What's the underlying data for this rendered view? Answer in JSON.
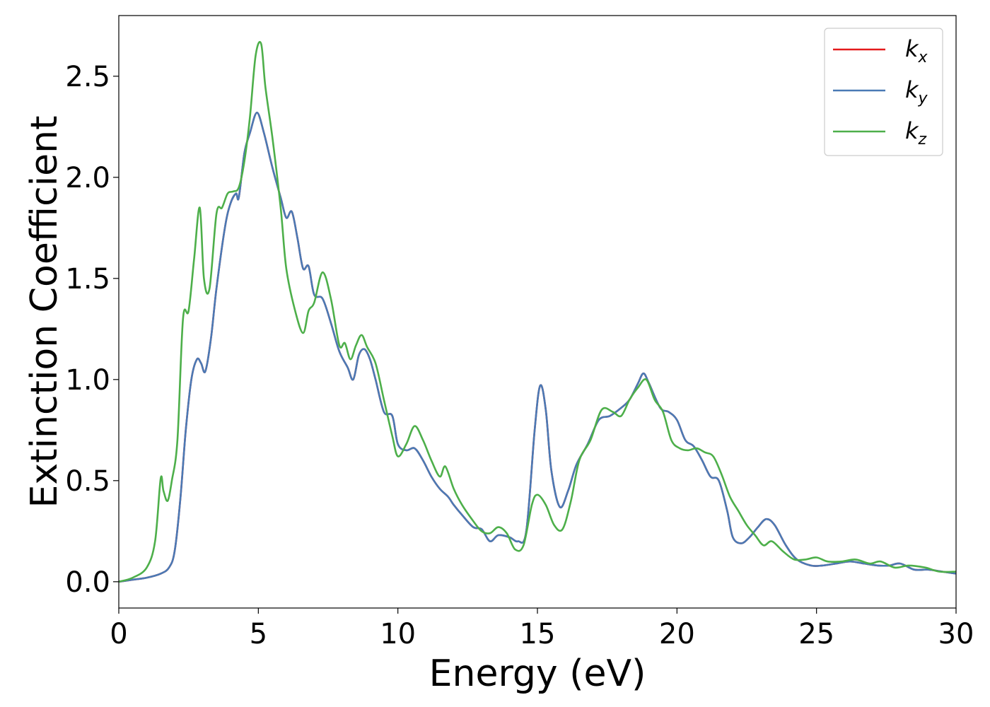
{
  "chart_data": {
    "type": "line",
    "title": "",
    "xlabel": "Energy (eV)",
    "ylabel": "Extinction Coefficient",
    "xlim": [
      0,
      30
    ],
    "ylim": [
      -0.13,
      2.8
    ],
    "xticks": [
      0,
      5,
      10,
      15,
      20,
      25,
      30
    ],
    "xtick_labels": [
      "0",
      "5",
      "10",
      "15",
      "20",
      "25",
      "30"
    ],
    "yticks": [
      0.0,
      0.5,
      1.0,
      1.5,
      2.0,
      2.5
    ],
    "ytick_labels": [
      "0.0",
      "0.5",
      "1.0",
      "1.5",
      "2.0",
      "2.5"
    ],
    "grid": false,
    "legend_position": "top-right",
    "series": [
      {
        "name": "kx",
        "legend_base": "k",
        "legend_sub": "x",
        "color": "#e41a1c",
        "x": [
          0,
          0.5,
          1.0,
          1.5,
          1.8,
          2.0,
          2.2,
          2.4,
          2.6,
          2.8,
          2.95,
          3.1,
          3.3,
          3.5,
          3.8,
          4.0,
          4.2,
          4.3,
          4.5,
          4.7,
          4.95,
          5.2,
          5.5,
          5.8,
          6.0,
          6.2,
          6.4,
          6.6,
          6.8,
          7.0,
          7.3,
          7.6,
          7.9,
          8.2,
          8.4,
          8.6,
          8.8,
          9.0,
          9.2,
          9.5,
          9.8,
          10.0,
          10.3,
          10.6,
          10.9,
          11.2,
          11.5,
          11.8,
          12.0,
          12.3,
          12.7,
          13.0,
          13.3,
          13.6,
          14.0,
          14.3,
          14.6,
          14.9,
          15.1,
          15.3,
          15.5,
          15.8,
          16.1,
          16.4,
          16.8,
          17.2,
          17.6,
          18.0,
          18.3,
          18.6,
          18.8,
          19.0,
          19.4,
          19.7,
          20.0,
          20.3,
          20.6,
          20.9,
          21.2,
          21.5,
          21.8,
          22.0,
          22.3,
          22.6,
          22.9,
          23.2,
          23.5,
          23.9,
          24.3,
          24.8,
          25.2,
          25.7,
          26.2,
          26.7,
          27.2,
          27.6,
          28.0,
          28.5,
          29.0,
          29.5,
          30.0
        ],
        "y": [
          0.0,
          0.01,
          0.02,
          0.04,
          0.07,
          0.15,
          0.4,
          0.75,
          1.0,
          1.1,
          1.08,
          1.04,
          1.2,
          1.45,
          1.75,
          1.87,
          1.92,
          1.9,
          2.12,
          2.22,
          2.32,
          2.22,
          2.05,
          1.9,
          1.8,
          1.83,
          1.7,
          1.55,
          1.56,
          1.42,
          1.4,
          1.28,
          1.14,
          1.06,
          1.0,
          1.12,
          1.15,
          1.1,
          1.0,
          0.84,
          0.82,
          0.68,
          0.65,
          0.66,
          0.6,
          0.52,
          0.46,
          0.42,
          0.38,
          0.33,
          0.27,
          0.26,
          0.2,
          0.23,
          0.22,
          0.2,
          0.25,
          0.75,
          0.97,
          0.85,
          0.55,
          0.37,
          0.45,
          0.58,
          0.68,
          0.8,
          0.82,
          0.86,
          0.9,
          0.98,
          1.03,
          0.98,
          0.86,
          0.84,
          0.8,
          0.7,
          0.67,
          0.6,
          0.52,
          0.5,
          0.35,
          0.22,
          0.19,
          0.22,
          0.27,
          0.31,
          0.28,
          0.18,
          0.11,
          0.08,
          0.08,
          0.09,
          0.1,
          0.09,
          0.08,
          0.08,
          0.09,
          0.06,
          0.06,
          0.05,
          0.04
        ]
      },
      {
        "name": "ky",
        "legend_base": "k",
        "legend_sub": "y",
        "color": "#4a7ab5",
        "x": [
          0,
          0.5,
          1.0,
          1.5,
          1.8,
          2.0,
          2.2,
          2.4,
          2.6,
          2.8,
          2.95,
          3.1,
          3.3,
          3.5,
          3.8,
          4.0,
          4.2,
          4.3,
          4.5,
          4.7,
          4.95,
          5.2,
          5.5,
          5.8,
          6.0,
          6.2,
          6.4,
          6.6,
          6.8,
          7.0,
          7.3,
          7.6,
          7.9,
          8.2,
          8.4,
          8.6,
          8.8,
          9.0,
          9.2,
          9.5,
          9.8,
          10.0,
          10.3,
          10.6,
          10.9,
          11.2,
          11.5,
          11.8,
          12.0,
          12.3,
          12.7,
          13.0,
          13.3,
          13.6,
          14.0,
          14.3,
          14.6,
          14.9,
          15.1,
          15.3,
          15.5,
          15.8,
          16.1,
          16.4,
          16.8,
          17.2,
          17.6,
          18.0,
          18.3,
          18.6,
          18.8,
          19.0,
          19.4,
          19.7,
          20.0,
          20.3,
          20.6,
          20.9,
          21.2,
          21.5,
          21.8,
          22.0,
          22.3,
          22.6,
          22.9,
          23.2,
          23.5,
          23.9,
          24.3,
          24.8,
          25.2,
          25.7,
          26.2,
          26.7,
          27.2,
          27.6,
          28.0,
          28.5,
          29.0,
          29.5,
          30.0
        ],
        "y": [
          0.0,
          0.01,
          0.02,
          0.04,
          0.07,
          0.15,
          0.4,
          0.75,
          1.0,
          1.1,
          1.08,
          1.04,
          1.2,
          1.45,
          1.75,
          1.87,
          1.92,
          1.9,
          2.12,
          2.22,
          2.32,
          2.22,
          2.05,
          1.9,
          1.8,
          1.83,
          1.7,
          1.55,
          1.56,
          1.42,
          1.4,
          1.28,
          1.14,
          1.06,
          1.0,
          1.12,
          1.15,
          1.1,
          1.0,
          0.84,
          0.82,
          0.68,
          0.65,
          0.66,
          0.6,
          0.52,
          0.46,
          0.42,
          0.38,
          0.33,
          0.27,
          0.26,
          0.2,
          0.23,
          0.22,
          0.2,
          0.25,
          0.75,
          0.97,
          0.85,
          0.55,
          0.37,
          0.45,
          0.58,
          0.68,
          0.8,
          0.82,
          0.86,
          0.9,
          0.98,
          1.03,
          0.98,
          0.86,
          0.84,
          0.8,
          0.7,
          0.67,
          0.6,
          0.52,
          0.5,
          0.35,
          0.22,
          0.19,
          0.22,
          0.27,
          0.31,
          0.28,
          0.18,
          0.11,
          0.08,
          0.08,
          0.09,
          0.1,
          0.09,
          0.08,
          0.08,
          0.09,
          0.06,
          0.06,
          0.05,
          0.04
        ]
      },
      {
        "name": "kz",
        "legend_base": "k",
        "legend_sub": "z",
        "color": "#4daf4a",
        "x": [
          0,
          0.5,
          1.0,
          1.3,
          1.5,
          1.6,
          1.75,
          1.9,
          2.1,
          2.3,
          2.5,
          2.7,
          2.9,
          3.05,
          3.25,
          3.5,
          3.7,
          3.9,
          4.1,
          4.3,
          4.5,
          4.7,
          4.9,
          5.1,
          5.25,
          5.5,
          5.8,
          6.0,
          6.3,
          6.6,
          6.8,
          7.0,
          7.3,
          7.6,
          7.9,
          8.1,
          8.3,
          8.5,
          8.7,
          8.9,
          9.2,
          9.5,
          9.8,
          10.0,
          10.3,
          10.6,
          10.9,
          11.2,
          11.5,
          11.7,
          12.0,
          12.3,
          12.7,
          13.0,
          13.3,
          13.6,
          13.9,
          14.2,
          14.5,
          14.8,
          15.0,
          15.3,
          15.6,
          15.9,
          16.2,
          16.5,
          16.9,
          17.3,
          17.7,
          18.0,
          18.3,
          18.6,
          18.9,
          19.2,
          19.5,
          19.8,
          20.1,
          20.4,
          20.7,
          21.0,
          21.3,
          21.6,
          21.9,
          22.2,
          22.5,
          22.8,
          23.1,
          23.4,
          23.8,
          24.2,
          24.6,
          25.0,
          25.4,
          25.9,
          26.4,
          26.9,
          27.3,
          27.8,
          28.3,
          28.9,
          29.4,
          30.0
        ],
        "y": [
          0.0,
          0.02,
          0.07,
          0.2,
          0.51,
          0.45,
          0.4,
          0.5,
          0.7,
          1.3,
          1.34,
          1.6,
          1.85,
          1.5,
          1.45,
          1.82,
          1.85,
          1.92,
          1.93,
          1.95,
          2.08,
          2.3,
          2.6,
          2.66,
          2.45,
          2.2,
          1.85,
          1.55,
          1.35,
          1.23,
          1.34,
          1.38,
          1.53,
          1.4,
          1.17,
          1.18,
          1.1,
          1.17,
          1.22,
          1.16,
          1.08,
          0.9,
          0.72,
          0.62,
          0.68,
          0.77,
          0.7,
          0.6,
          0.52,
          0.57,
          0.46,
          0.38,
          0.3,
          0.25,
          0.24,
          0.27,
          0.24,
          0.16,
          0.18,
          0.38,
          0.43,
          0.38,
          0.28,
          0.26,
          0.4,
          0.6,
          0.7,
          0.85,
          0.84,
          0.82,
          0.9,
          0.96,
          1.0,
          0.9,
          0.84,
          0.7,
          0.66,
          0.65,
          0.66,
          0.64,
          0.62,
          0.53,
          0.42,
          0.35,
          0.28,
          0.23,
          0.18,
          0.2,
          0.15,
          0.11,
          0.11,
          0.12,
          0.1,
          0.1,
          0.11,
          0.09,
          0.1,
          0.07,
          0.08,
          0.07,
          0.05,
          0.05
        ]
      }
    ]
  }
}
